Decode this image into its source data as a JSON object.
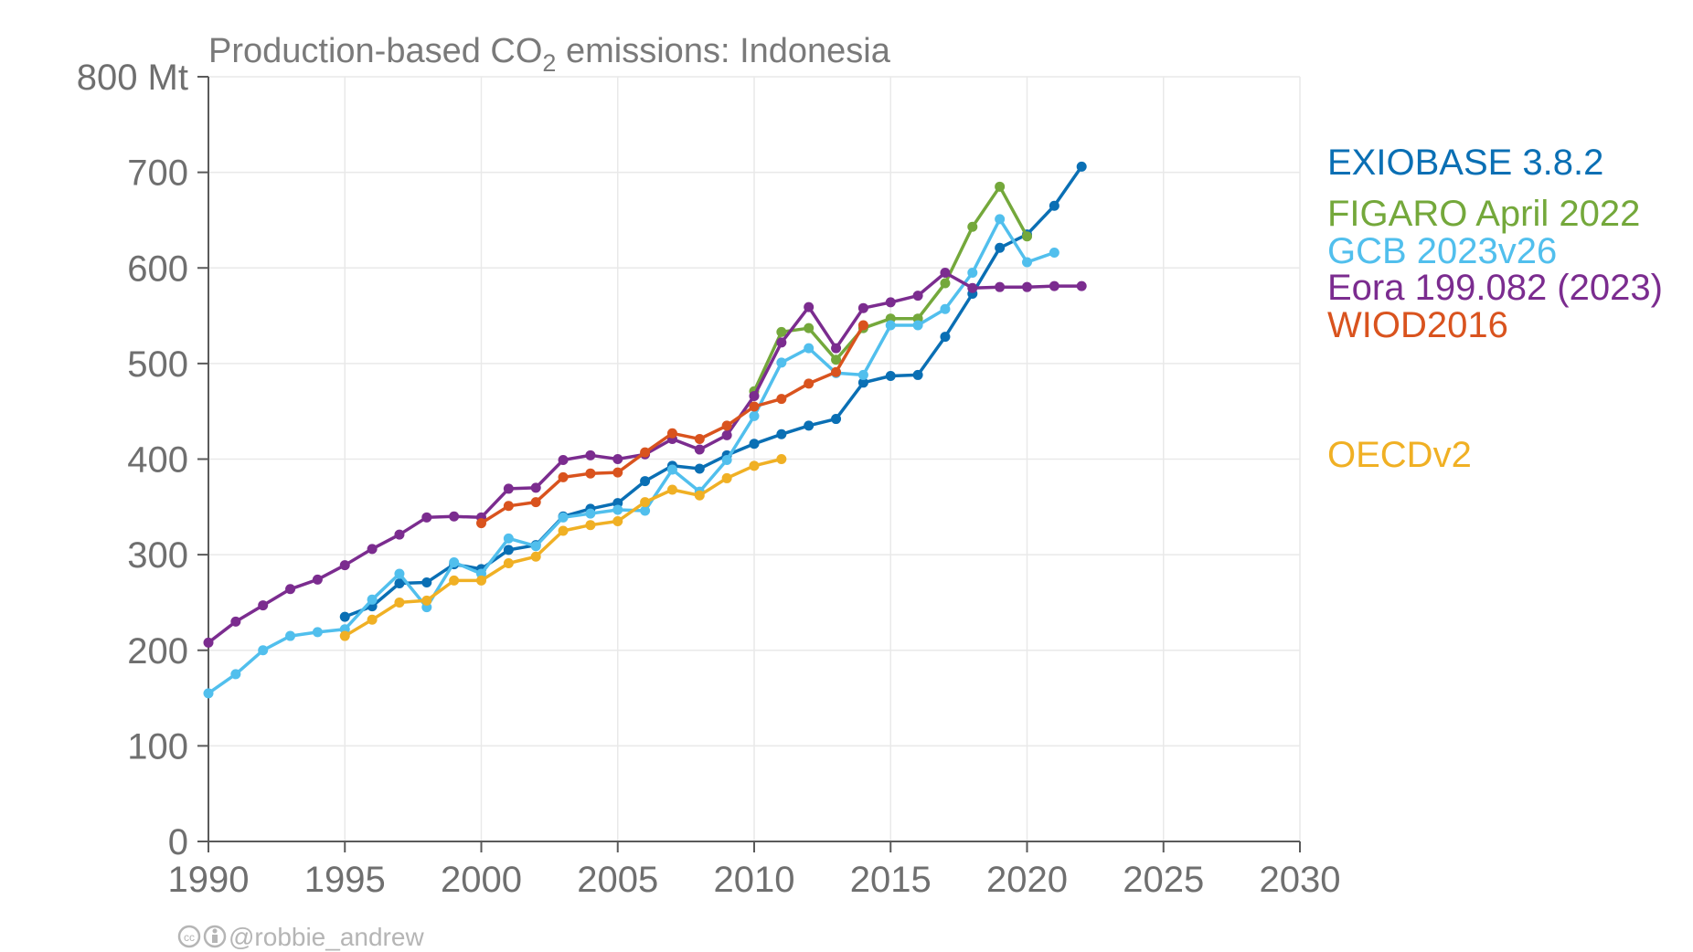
{
  "chart_data": {
    "type": "line",
    "title": {
      "prefix": "Production-based CO",
      "subscript": "2",
      "suffix": " emissions: Indonesia"
    },
    "xlabel": "",
    "ylabel": "",
    "xlim": [
      1990,
      2030
    ],
    "ylim": [
      0,
      800
    ],
    "x_ticks": [
      1990,
      1995,
      2000,
      2005,
      2010,
      2015,
      2020,
      2025,
      2030
    ],
    "y_ticks": [
      0,
      100,
      200,
      300,
      400,
      500,
      600,
      700,
      800
    ],
    "y_tick_labels": [
      "0",
      "100",
      "200",
      "300",
      "400",
      "500",
      "600",
      "700",
      "800 Mt"
    ],
    "grid": true,
    "legend_placement": "right",
    "series": [
      {
        "name": "EXIOBASE 3.8.2",
        "color": "#0a6fb4",
        "x": [
          1995,
          1996,
          1997,
          1998,
          1999,
          2000,
          2001,
          2002,
          2003,
          2004,
          2005,
          2006,
          2007,
          2008,
          2009,
          2010,
          2011,
          2012,
          2013,
          2014,
          2015,
          2016,
          2017,
          2018,
          2019,
          2020,
          2021,
          2022
        ],
        "y": [
          235,
          246,
          270,
          271,
          290,
          285,
          305,
          310,
          340,
          348,
          354,
          377,
          393,
          390,
          404,
          416,
          426,
          435,
          442,
          480,
          487,
          488,
          528,
          573,
          621,
          635,
          665,
          706
        ]
      },
      {
        "name": "FIGARO April 2022",
        "color": "#74a83b",
        "x": [
          2010,
          2011,
          2012,
          2013,
          2014,
          2015,
          2016,
          2017,
          2018,
          2019,
          2020
        ],
        "y": [
          471,
          533,
          537,
          504,
          537,
          547,
          547,
          584,
          643,
          685,
          633
        ]
      },
      {
        "name": "GCB 2023v26",
        "color": "#51bfed",
        "x": [
          1990,
          1991,
          1992,
          1993,
          1994,
          1995,
          1996,
          1997,
          1998,
          1999,
          2000,
          2001,
          2002,
          2003,
          2004,
          2005,
          2006,
          2007,
          2008,
          2009,
          2010,
          2011,
          2012,
          2013,
          2014,
          2015,
          2016,
          2017,
          2018,
          2019,
          2020,
          2021
        ],
        "y": [
          155,
          175,
          200,
          215,
          219,
          222,
          253,
          280,
          245,
          292,
          280,
          317,
          309,
          339,
          343,
          347,
          346,
          389,
          366,
          399,
          445,
          501,
          516,
          490,
          488,
          540,
          540,
          557,
          595,
          651,
          606,
          616
        ]
      },
      {
        "name": "Eora 199.082 (2023)",
        "color": "#7b2c8f",
        "x": [
          1990,
          1991,
          1992,
          1993,
          1994,
          1995,
          1996,
          1997,
          1998,
          1999,
          2000,
          2001,
          2002,
          2003,
          2004,
          2005,
          2006,
          2007,
          2008,
          2009,
          2010,
          2011,
          2012,
          2013,
          2014,
          2015,
          2016,
          2017,
          2018,
          2019,
          2020,
          2021,
          2022
        ],
        "y": [
          208,
          230,
          247,
          264,
          274,
          289,
          306,
          321,
          339,
          340,
          339,
          369,
          370,
          399,
          404,
          400,
          405,
          421,
          410,
          425,
          466,
          522,
          559,
          516,
          558,
          564,
          571,
          595,
          579,
          580,
          580,
          581,
          581
        ]
      },
      {
        "name": "WIOD2016",
        "color": "#d9531e",
        "x": [
          2000,
          2001,
          2002,
          2003,
          2004,
          2005,
          2006,
          2007,
          2008,
          2009,
          2010,
          2011,
          2012,
          2013,
          2014
        ],
        "y": [
          333,
          351,
          355,
          381,
          385,
          386,
          407,
          427,
          421,
          435,
          455,
          463,
          479,
          491,
          540
        ]
      },
      {
        "name": "OECDv2",
        "color": "#f0b024",
        "x": [
          1995,
          1996,
          1997,
          1998,
          1999,
          2000,
          2001,
          2002,
          2003,
          2004,
          2005,
          2006,
          2007,
          2008,
          2009,
          2010,
          2011
        ],
        "y": [
          215,
          232,
          250,
          252,
          273,
          273,
          291,
          298,
          325,
          331,
          335,
          355,
          368,
          362,
          380,
          393,
          400
        ]
      }
    ],
    "legend_order": [
      "EXIOBASE 3.8.2",
      "FIGARO April 2022",
      "GCB 2023v26",
      "Eora 199.082 (2023)",
      "WIOD2016",
      "OECDv2"
    ]
  },
  "credit": {
    "icons": [
      "cc-icon",
      "by-icon"
    ],
    "text": "@robbie_andrew"
  }
}
